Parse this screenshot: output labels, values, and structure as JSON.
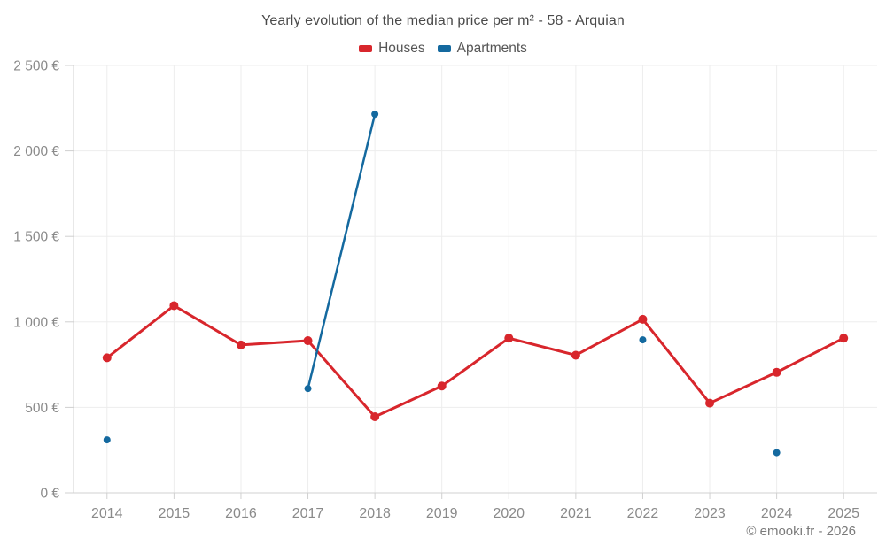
{
  "title": "Yearly evolution of the median price per m² - 58 - Arquian",
  "footer": "© emooki.fr - 2026",
  "colors": {
    "houses": "#d8262c",
    "apartments": "#14699f",
    "grid": "#ededed",
    "axis": "#d0d0d0",
    "tick_label": "#8a8a8a"
  },
  "chart_data": {
    "type": "line",
    "title": "Yearly evolution of the median price per m² - 58 - Arquian",
    "categories": [
      "2014",
      "2015",
      "2016",
      "2017",
      "2018",
      "2019",
      "2020",
      "2021",
      "2022",
      "2023",
      "2024",
      "2025"
    ],
    "series": [
      {
        "name": "Houses",
        "color": "#d8262c",
        "values": [
          790,
          1095,
          865,
          890,
          445,
          625,
          905,
          805,
          1015,
          525,
          705,
          905
        ]
      },
      {
        "name": "Apartments",
        "color": "#14699f",
        "values": [
          310,
          null,
          null,
          610,
          2215,
          null,
          null,
          null,
          895,
          null,
          235,
          null
        ]
      }
    ],
    "xlabel": "",
    "ylabel": "",
    "ylim": [
      0,
      2500
    ],
    "ytick_step": 500,
    "ytick_labels": [
      "0 €",
      "500 €",
      "1 000 €",
      "1 500 €",
      "2 000 €",
      "2 500 €"
    ],
    "grid": true,
    "legend_position": "top"
  }
}
